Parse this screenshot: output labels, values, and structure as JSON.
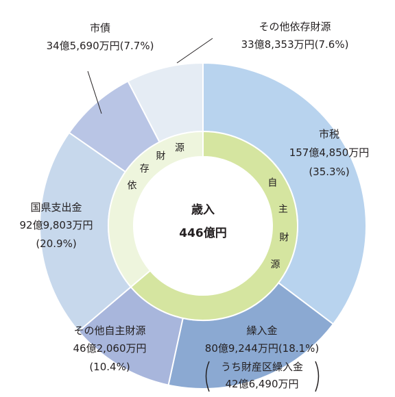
{
  "chart_data": {
    "type": "pie",
    "center_label": {
      "title": "歳入",
      "total": "446億円"
    },
    "slices": [
      {
        "name": "市税",
        "amount": "157億4,850万円",
        "percent_label": "(35.3%)",
        "value": 35.3,
        "color": "#b8d3ee"
      },
      {
        "name": "繰入金",
        "amount": "80億9,244万円(18.1%)",
        "sub_name": "うち財産区繰入金",
        "sub_amount": "42億6,490万円",
        "value": 18.1,
        "color": "#8ba9d2"
      },
      {
        "name": "その他自主財源",
        "amount": "46億2,060万円",
        "percent_label": "(10.4%)",
        "value": 10.4,
        "color": "#a8b6dc"
      },
      {
        "name": "国県支出金",
        "amount": "92億9,803万円",
        "percent_label": "(20.9%)",
        "value": 20.9,
        "color": "#c7d8ec"
      },
      {
        "name": "市債",
        "amount": "34億5,690万円(7.7%)",
        "value": 7.7,
        "color": "#b9c5e5"
      },
      {
        "name": "その他依存財源",
        "amount": "33億8,353万円(7.6%)",
        "value": 7.6,
        "color": "#e5ecf4"
      }
    ],
    "inner_ring": [
      {
        "label": "自主財源",
        "chars": [
          "自",
          "主",
          "財",
          "源"
        ],
        "value": 63.8,
        "color": "#d5e5a0"
      },
      {
        "label": "依存財源",
        "chars": [
          "依",
          "存",
          "財",
          "源"
        ],
        "value": 36.2,
        "color": "#eef5dd"
      }
    ]
  }
}
